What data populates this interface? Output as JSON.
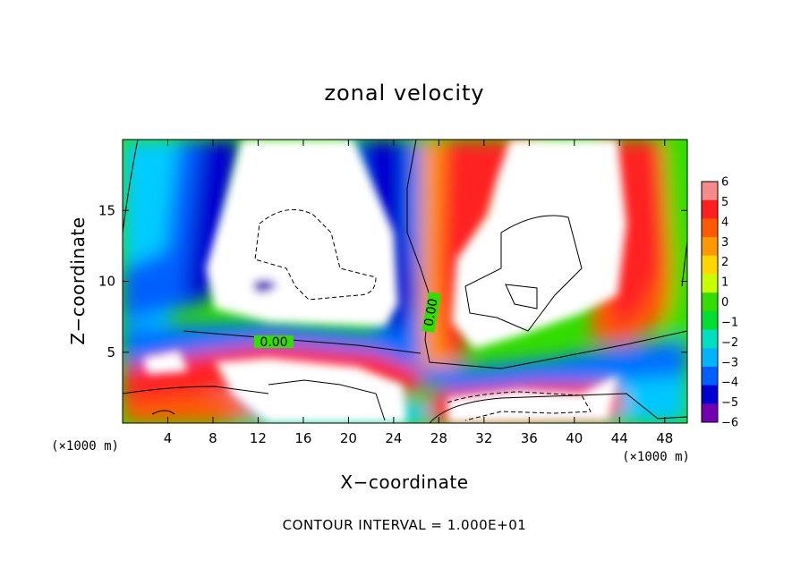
{
  "chart_data": {
    "type": "heatmap",
    "title": "zonal velocity",
    "xlabel": "X−coordinate",
    "ylabel": "Z−coordinate",
    "x_unit": "(×1000 m)",
    "x_unit_secondary": "(×1000 m)",
    "xlim": [
      0,
      50
    ],
    "ylim": [
      0,
      20
    ],
    "x_ticks": [
      4,
      8,
      12,
      16,
      20,
      24,
      28,
      32,
      36,
      40,
      44,
      48
    ],
    "y_ticks": [
      5,
      10,
      15
    ],
    "colorbar": {
      "ticks": [
        6,
        5,
        4,
        3,
        2,
        1,
        0,
        -1,
        -2,
        -3,
        -4,
        -5,
        -6
      ],
      "colors": [
        "#f48a8a",
        "#ff2020",
        "#ff5a00",
        "#ff9900",
        "#ffd700",
        "#c8ff00",
        "#33dd00",
        "#00dd33",
        "#00e0c0",
        "#00b4ff",
        "#0060ff",
        "#0000d0",
        "#7000b0"
      ]
    },
    "contour_labels": [
      "0.00",
      "0.00"
    ],
    "footer": "CONTOUR INTERVAL = 1.000E+01"
  }
}
